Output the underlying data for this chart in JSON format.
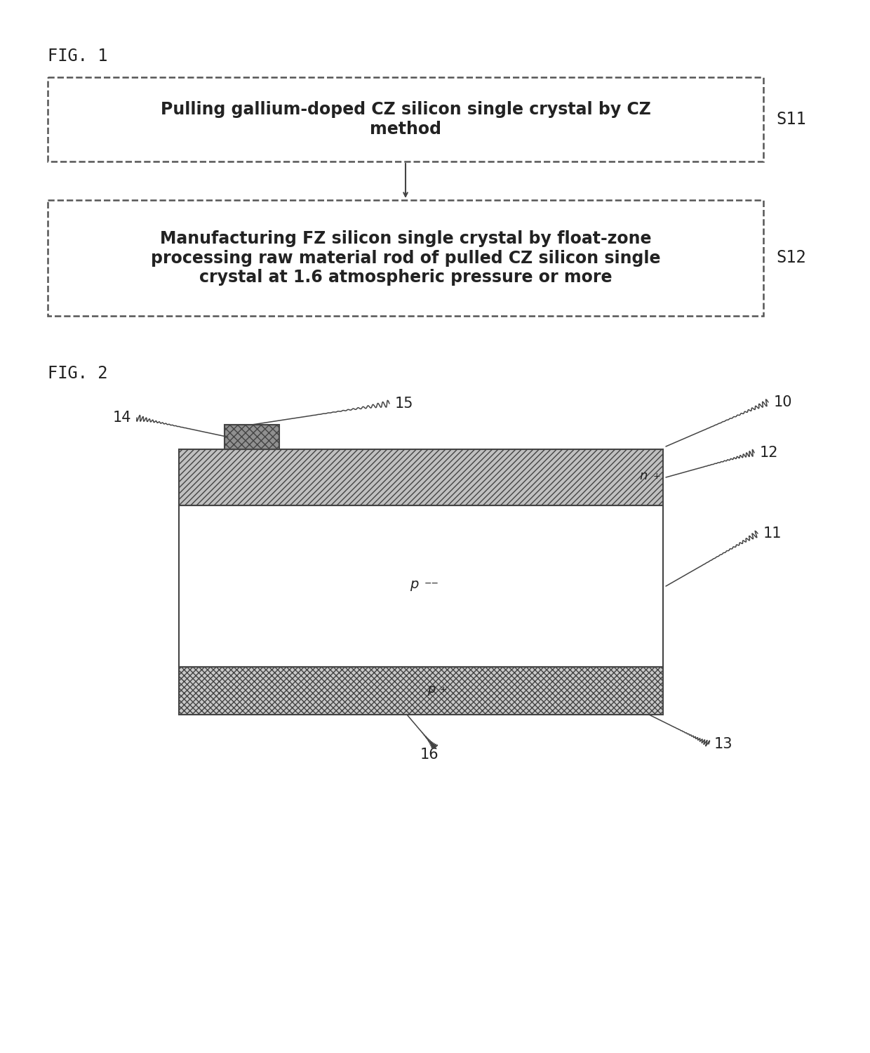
{
  "fig1_label": "FIG. 1",
  "fig2_label": "FIG. 2",
  "box1_text": "Pulling gallium-doped CZ silicon single crystal by CZ\nmethod",
  "box2_text": "Manufacturing FZ silicon single crystal by float-zone\nprocessing raw material rod of pulled CZ silicon single\ncrystal at 1.6 atmospheric pressure or more",
  "step1_label": "S11",
  "step2_label": "S12",
  "bg_color": "#ffffff",
  "box_bg": "#ffffff",
  "box_border": "#555555",
  "text_color": "#222222",
  "n_plus_label": "n",
  "p_minus_label": "p",
  "p_plus_label": "p",
  "labels": [
    "10",
    "11",
    "12",
    "13",
    "14",
    "15",
    "16"
  ],
  "hatch_n_plus": "////",
  "hatch_p_plus": "xxxx",
  "n_plus_color": "#c0c0c0",
  "p_minus_color": "#ffffff",
  "p_plus_color": "#c8c8c8",
  "electrode_color": "#909090",
  "border_color": "#444444"
}
